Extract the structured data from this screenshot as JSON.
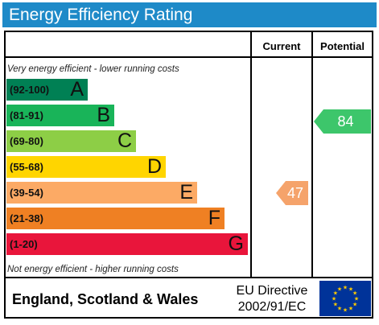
{
  "title": "Energy Efficiency Rating",
  "columns": {
    "current": "Current",
    "potential": "Potential"
  },
  "notes": {
    "top": "Very energy efficient - lower running costs",
    "bottom": "Not energy efficient - higher running costs"
  },
  "bands": [
    {
      "range": "(92-100)",
      "letter": "A",
      "color": "#008054"
    },
    {
      "range": "(81-91)",
      "letter": "B",
      "color": "#19b459"
    },
    {
      "range": "(69-80)",
      "letter": "C",
      "color": "#8dce46"
    },
    {
      "range": "(55-68)",
      "letter": "D",
      "color": "#ffd500"
    },
    {
      "range": "(39-54)",
      "letter": "E",
      "color": "#fcaa65"
    },
    {
      "range": "(21-38)",
      "letter": "F",
      "color": "#ef8023"
    },
    {
      "range": "(1-20)",
      "letter": "G",
      "color": "#e9153b"
    }
  ],
  "current": {
    "value": "47",
    "band": "E",
    "color": "#f5a36b"
  },
  "potential": {
    "value": "84",
    "band": "B",
    "color": "#3dc66b"
  },
  "footer": {
    "region": "England, Scotland & Wales",
    "directive_line1": "EU Directive",
    "directive_line2": "2002/91/EC"
  },
  "eu_flag": {
    "icon": "eu-flag-icon",
    "background": "#003399",
    "stars": "#ffcc00"
  }
}
